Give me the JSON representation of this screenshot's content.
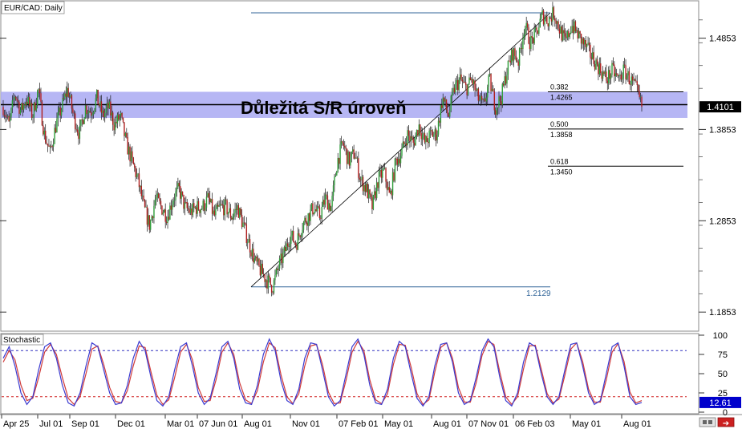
{
  "window": {
    "title": "EUR/CAD: Daily",
    "indicator_title": "Stochastic"
  },
  "colors": {
    "up_candle": "#2e9e3a",
    "down_candle": "#b02020",
    "wick": "#1a1a1a",
    "zone_fill": "#a9a9f2",
    "zone_edge": "#6666cc",
    "level_line": "#000000",
    "trend_line_top": "#336699",
    "k_line": "#3a3ad0",
    "d_line": "#d03a3a",
    "overbought": "#3030c0",
    "oversold": "#d02020",
    "current_price_bg": "#000000",
    "current_stoch_bg": "#0000cc"
  },
  "chart_data": [
    {
      "type": "candlestick",
      "symbol": "EUR/CAD",
      "timeframe": "Daily",
      "title": "EUR/CAD: Daily",
      "annotation": "Důležitá S/R úroveň",
      "ylim": [
        1.1653,
        1.5253
      ],
      "y_ticks": [
        1.4853,
        1.3853,
        1.2853,
        1.1853
      ],
      "y_tick_labels": [
        "1.4853",
        "1.3853",
        "1.2853",
        "1.1853"
      ],
      "current_price_label": "1.4101",
      "current_price": 1.4101,
      "x_ticks": [
        "Apr 25",
        "Jul 01",
        "Sep 01",
        "Dec 01",
        "Mar 01",
        "07 Jun 01",
        "Aug 01",
        "Nov 01",
        "07 Feb 01",
        "May 01",
        "Aug 01",
        "07 Nov 01",
        "06 Feb 03",
        "May 01",
        "Aug 01"
      ],
      "sr_zone": [
        1.398,
        1.4265
      ],
      "sr_level": 1.4125,
      "swing_low": 1.2129,
      "swing_low_label": "1.2129",
      "swing_high": 1.513,
      "fibonacci": [
        {
          "ratio": "0.382",
          "value": "1.4265",
          "price": 1.4265
        },
        {
          "ratio": "0.500",
          "value": "1.3858",
          "price": 1.3858
        },
        {
          "ratio": "0.618",
          "value": "1.3450",
          "price": 1.345
        }
      ],
      "price_path": [
        1.41,
        1.39,
        1.425,
        1.405,
        1.42,
        1.4,
        1.43,
        1.38,
        1.36,
        1.39,
        1.41,
        1.43,
        1.4,
        1.38,
        1.41,
        1.405,
        1.42,
        1.4,
        1.41,
        1.39,
        1.4,
        1.37,
        1.35,
        1.33,
        1.3,
        1.28,
        1.31,
        1.3,
        1.29,
        1.31,
        1.32,
        1.3,
        1.295,
        1.3,
        1.3,
        1.31,
        1.29,
        1.3,
        1.3,
        1.29,
        1.3,
        1.28,
        1.26,
        1.24,
        1.23,
        1.22,
        1.2129,
        1.235,
        1.25,
        1.27,
        1.26,
        1.28,
        1.29,
        1.3,
        1.29,
        1.31,
        1.3,
        1.35,
        1.37,
        1.35,
        1.36,
        1.33,
        1.32,
        1.3,
        1.33,
        1.34,
        1.31,
        1.35,
        1.36,
        1.38,
        1.37,
        1.39,
        1.37,
        1.38,
        1.38,
        1.42,
        1.4,
        1.43,
        1.44,
        1.43,
        1.44,
        1.42,
        1.41,
        1.44,
        1.41,
        1.42,
        1.45,
        1.47,
        1.46,
        1.5,
        1.48,
        1.49,
        1.51,
        1.505,
        1.513,
        1.495,
        1.48,
        1.5,
        1.49,
        1.48,
        1.47,
        1.46,
        1.45,
        1.44,
        1.45,
        1.44,
        1.45,
        1.44,
        1.43,
        1.41
      ]
    },
    {
      "type": "line",
      "title": "Stochastic",
      "ylim": [
        0,
        100
      ],
      "y_ticks": [
        100,
        75,
        50,
        25,
        0
      ],
      "y_tick_labels": [
        "100",
        "75",
        "50",
        "25",
        "0"
      ],
      "levels": {
        "overbought": 80,
        "oversold": 20
      },
      "current_value_label": "12.61",
      "current_value": 12.61,
      "series": [
        {
          "values": [
            70,
            85,
            60,
            25,
            10,
            20,
            55,
            85,
            90,
            70,
            35,
            12,
            8,
            25,
            60,
            90,
            85,
            55,
            25,
            10,
            12,
            35,
            70,
            92,
            80,
            45,
            15,
            8,
            20,
            55,
            85,
            90,
            60,
            25,
            10,
            18,
            50,
            85,
            92,
            70,
            30,
            12,
            10,
            35,
            75,
            95,
            80,
            40,
            15,
            10,
            30,
            70,
            90,
            88,
            55,
            20,
            8,
            15,
            50,
            85,
            95,
            75,
            35,
            12,
            10,
            30,
            70,
            92,
            85,
            50,
            18,
            8,
            20,
            60,
            88,
            90,
            65,
            25,
            10,
            15,
            45,
            80,
            95,
            85,
            45,
            15,
            8,
            25,
            65,
            90,
            85,
            50,
            20,
            10,
            20,
            55,
            88,
            90,
            60,
            25,
            10,
            15,
            50,
            85,
            90,
            60,
            20,
            10,
            12.61
          ]
        },
        {
          "values": [
            65,
            80,
            68,
            35,
            15,
            18,
            45,
            78,
            88,
            75,
            45,
            18,
            10,
            20,
            50,
            82,
            86,
            62,
            32,
            14,
            12,
            28,
            60,
            86,
            84,
            52,
            22,
            10,
            16,
            45,
            78,
            88,
            68,
            32,
            14,
            15,
            42,
            78,
            90,
            75,
            38,
            16,
            11,
            28,
            65,
            90,
            84,
            48,
            20,
            11,
            24,
            60,
            86,
            88,
            62,
            26,
            11,
            12,
            42,
            78,
            92,
            80,
            42,
            16,
            11,
            24,
            62,
            88,
            87,
            58,
            24,
            10,
            16,
            52,
            84,
            90,
            70,
            32,
            13,
            13,
            38,
            74,
            92,
            88,
            52,
            20,
            10,
            20,
            56,
            86,
            87,
            56,
            24,
            12,
            17,
            48,
            82,
            90,
            66,
            30,
            13,
            13,
            42,
            78,
            89,
            66,
            26,
            12,
            15
          ]
        }
      ]
    }
  ]
}
